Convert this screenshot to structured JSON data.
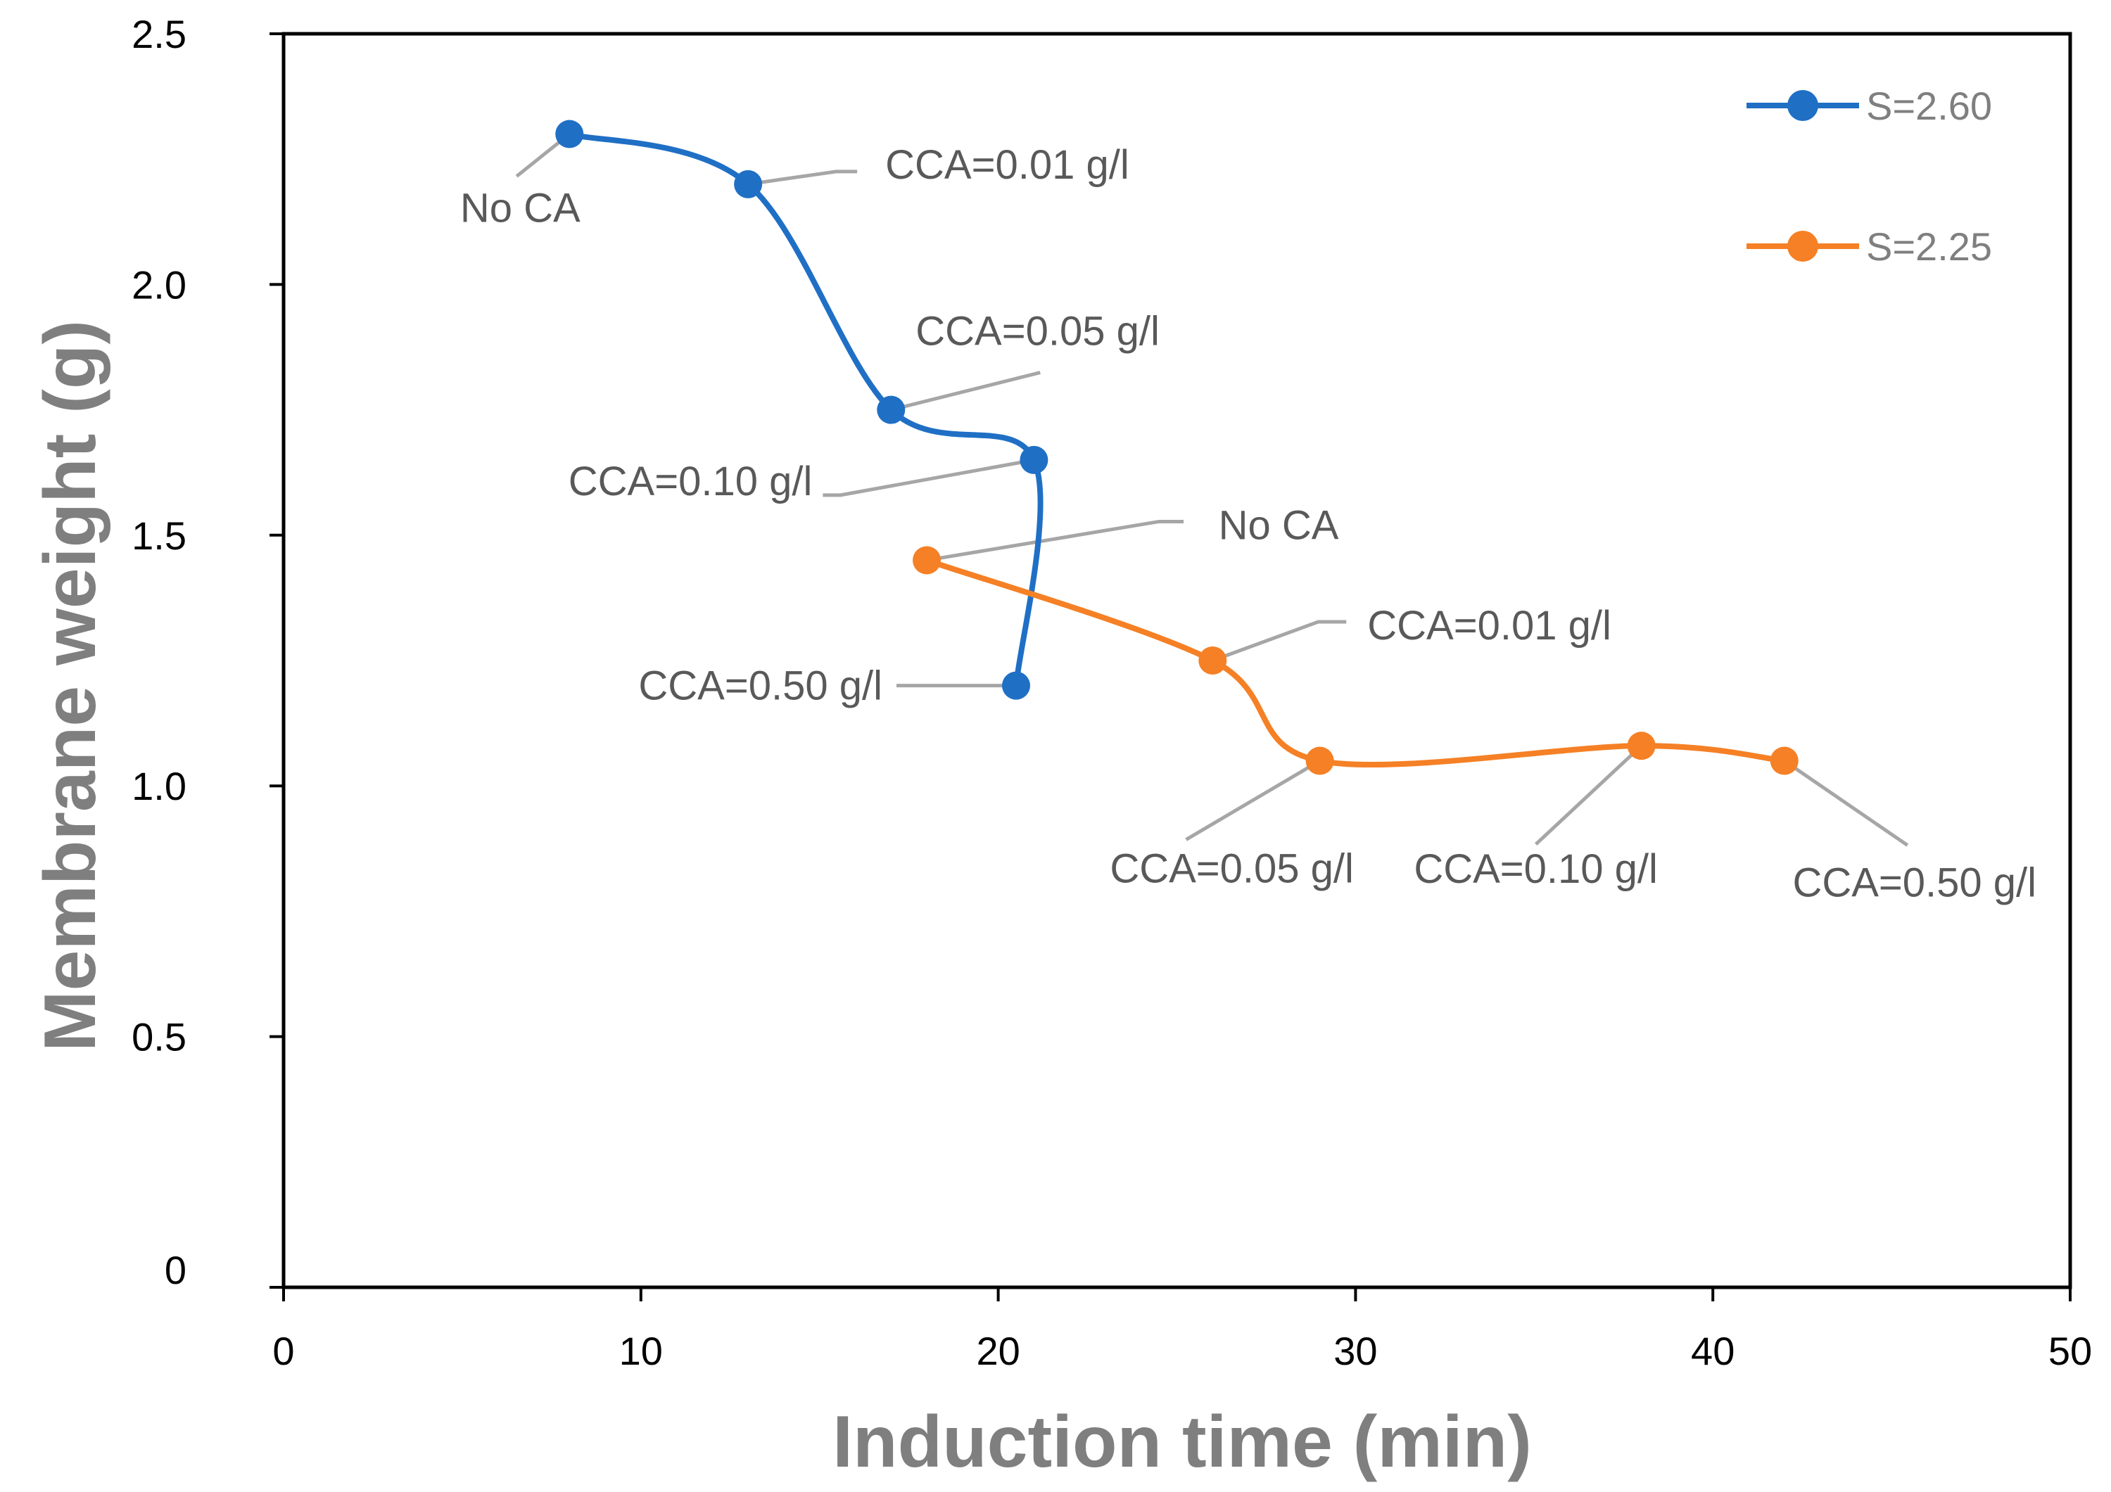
{
  "chart_data": {
    "type": "line",
    "title": "",
    "xlabel": "Induction time (min)",
    "ylabel": "Membrane weight (g)",
    "xlim": [
      0,
      50
    ],
    "ylim": [
      0,
      2.5
    ],
    "x_ticks": [
      0,
      10,
      20,
      30,
      40,
      50
    ],
    "y_ticks": [
      0,
      0.5,
      1.0,
      1.5,
      2.0,
      2.5
    ],
    "x_tick_labels": [
      "0",
      "10",
      "20",
      "30",
      "40",
      "50"
    ],
    "y_tick_labels": [
      "0",
      "0.5",
      "1.0",
      "1.5",
      "2.0",
      "2.5"
    ],
    "grid": false,
    "smooth": true,
    "legend_position": "top-right",
    "series": [
      {
        "name": "S=2.60",
        "color": "#1f6fc5",
        "x": [
          8,
          13,
          17,
          21,
          20.5
        ],
        "y": [
          2.3,
          2.2,
          1.75,
          1.65,
          1.2
        ],
        "point_labels": [
          "No CA",
          "CCA=0.01 g/l",
          "CCA=0.05 g/l",
          "CCA=0.10 g/l",
          "CCA=0.50 g/l"
        ]
      },
      {
        "name": "S=2.25",
        "color": "#f58025",
        "x": [
          18,
          26,
          29,
          38,
          42
        ],
        "y": [
          1.45,
          1.25,
          1.05,
          1.08,
          1.05
        ],
        "point_labels": [
          "No CA",
          "CCA=0.01 g/l",
          "CCA=0.05 g/l",
          "CCA=0.10 g/l",
          "CCA=0.50 g/l"
        ]
      }
    ],
    "leader_line_color": "#a6a6a6",
    "axis_color": "#000000"
  }
}
